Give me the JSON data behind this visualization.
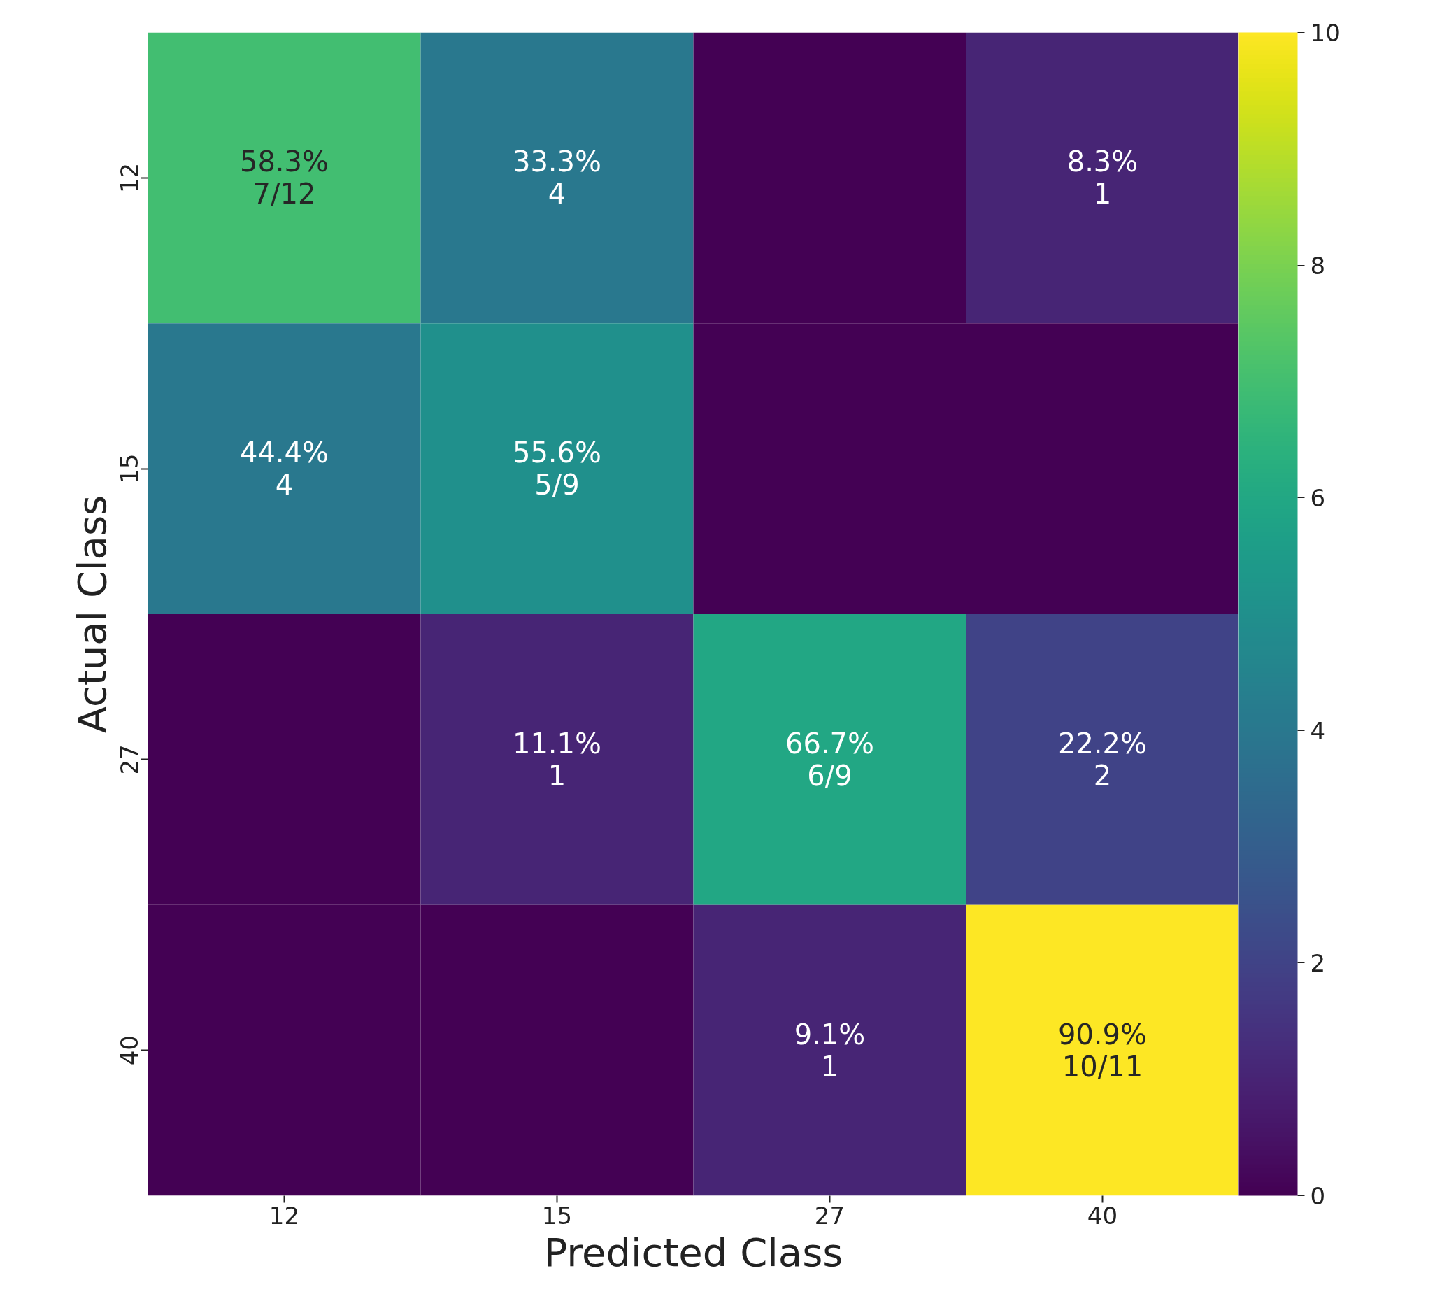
{
  "chart_data": {
    "type": "heatmap",
    "xlabel": "Predicted Class",
    "ylabel": "Actual Class",
    "categories": [
      "12",
      "15",
      "27",
      "40"
    ],
    "y_categories": [
      "12",
      "15",
      "27",
      "40"
    ],
    "cells": [
      [
        7,
        4,
        0,
        1
      ],
      [
        4,
        5,
        0,
        0
      ],
      [
        0,
        1,
        6,
        2
      ],
      [
        0,
        0,
        1,
        10
      ]
    ],
    "cell_labels": [
      [
        "58.3%\n7/12",
        "33.3%\n4",
        null,
        "8.3%\n1"
      ],
      [
        "44.4%\n4",
        "55.6%\n5/9",
        null,
        null
      ],
      [
        null,
        "11.1%\n1",
        "66.7%\n6/9",
        "22.2%\n2"
      ],
      [
        null,
        null,
        "9.1%\n1",
        "90.9%\n10/11"
      ]
    ],
    "clim": [
      0,
      10
    ],
    "cticks": [
      0,
      2,
      4,
      6,
      8,
      10
    ]
  }
}
